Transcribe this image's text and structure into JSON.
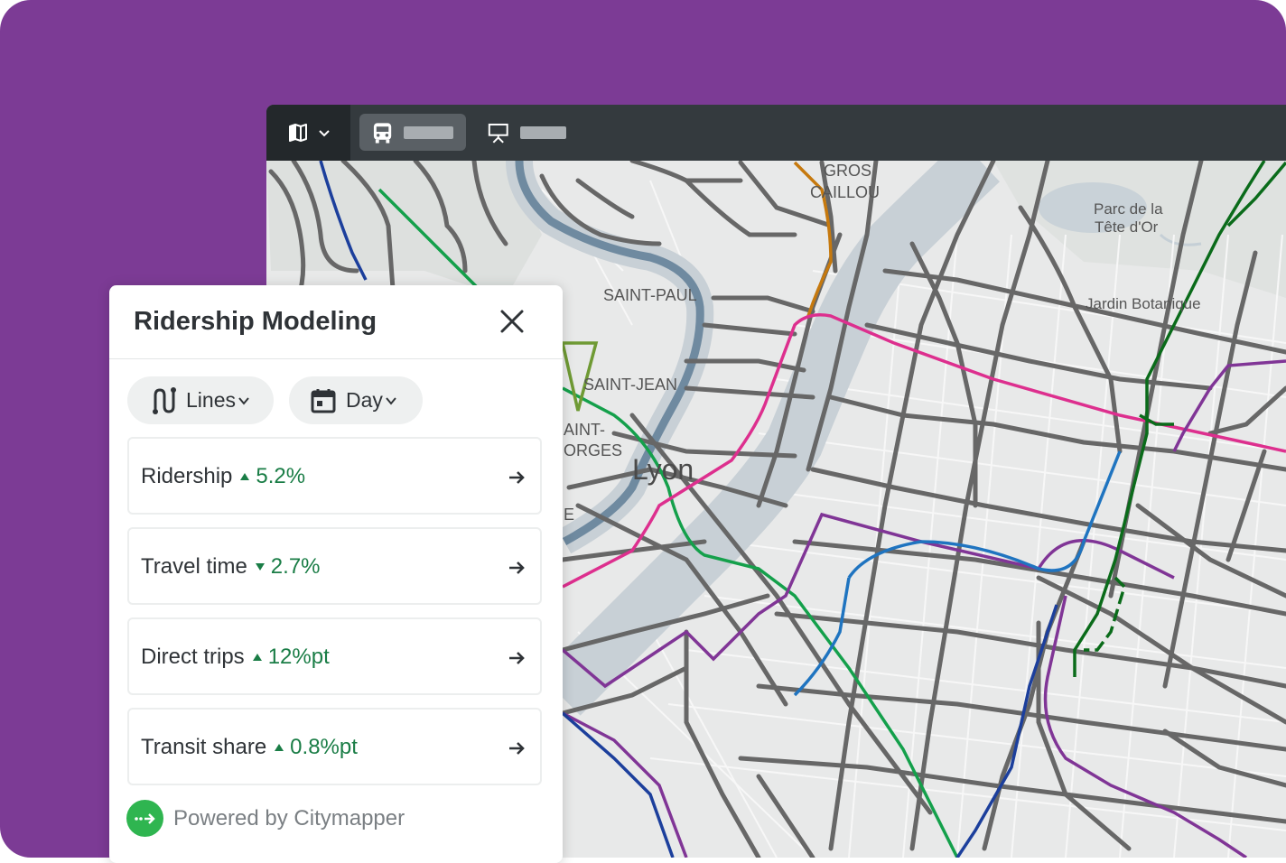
{
  "toolbar": {
    "view_switch_icon": "map-icon",
    "tabs": [
      {
        "icon": "bus-icon",
        "active": true
      },
      {
        "icon": "presentation-icon",
        "active": false
      }
    ]
  },
  "map": {
    "labels": {
      "gros_caillou_1": "GROS",
      "gros_caillou_2": "CAILLOU",
      "parc_1": "Parc de la",
      "parc_2": "Tête d'Or",
      "jardin": "Jardin Botanique",
      "saint_paul": "SAINT-PAUL",
      "saint_jean": "SAINT-JEAN",
      "saint_georges_1": "AINT-",
      "saint_georges_2": "ORGES",
      "lyon": "Lyon",
      "fragment_e": "E"
    }
  },
  "panel": {
    "title": "Ridership Modeling",
    "filters": {
      "lines_label": "Lines",
      "day_label": "Day"
    },
    "metrics": [
      {
        "label": "Ridership",
        "trend": "up",
        "value": "5.2%"
      },
      {
        "label": "Travel time",
        "trend": "down",
        "value": "2.7%"
      },
      {
        "label": "Direct trips",
        "trend": "up",
        "value": "12%pt"
      },
      {
        "label": "Transit share",
        "trend": "up",
        "value": "0.8%pt"
      }
    ],
    "footer": "Powered by Citymapper"
  },
  "colors": {
    "background": "#7c3b95",
    "positive": "#1a7d46",
    "citymapper_green": "#2fb550",
    "toolbar": "#343a3e"
  }
}
